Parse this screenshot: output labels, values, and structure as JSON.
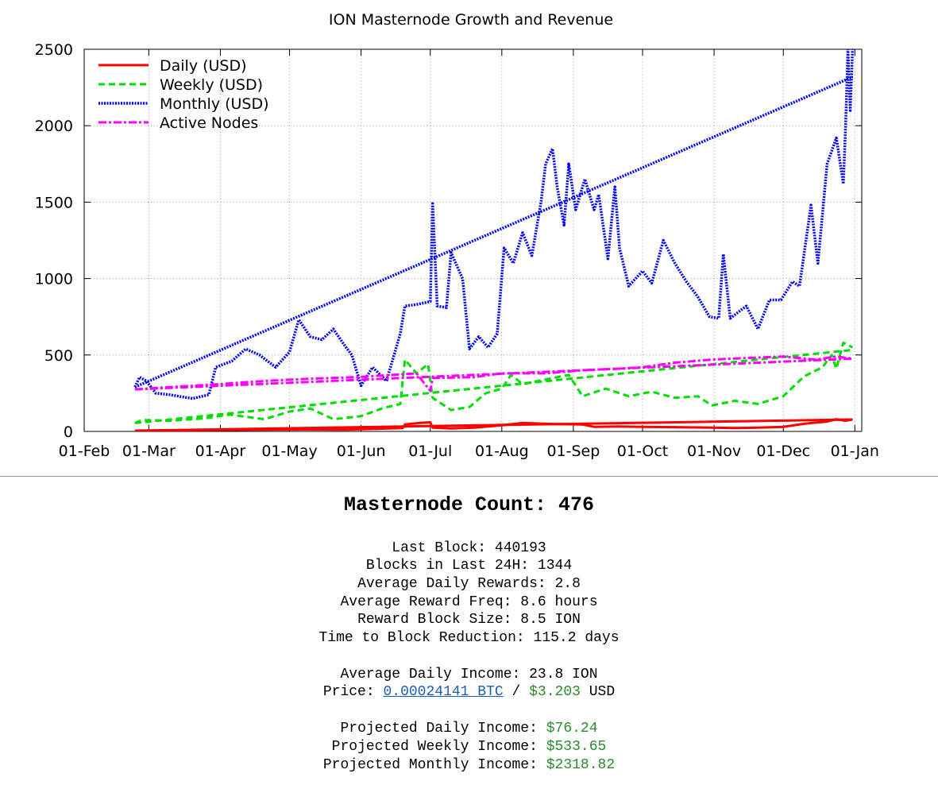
{
  "chart_data": {
    "type": "line",
    "title": "ION Masternode Growth and Revenue",
    "x_range": [
      "2018-02-01",
      "2019-01-04"
    ],
    "y_range": [
      0,
      2500
    ],
    "x_ticks": [
      {
        "date": "2018-02-01",
        "label": "01-Feb"
      },
      {
        "date": "2018-03-01",
        "label": "01-Mar"
      },
      {
        "date": "2018-04-01",
        "label": "01-Apr"
      },
      {
        "date": "2018-05-01",
        "label": "01-May"
      },
      {
        "date": "2018-06-01",
        "label": "01-Jun"
      },
      {
        "date": "2018-07-01",
        "label": "01-Jul"
      },
      {
        "date": "2018-08-01",
        "label": "01-Aug"
      },
      {
        "date": "2018-09-01",
        "label": "01-Sep"
      },
      {
        "date": "2018-10-01",
        "label": "01-Oct"
      },
      {
        "date": "2018-11-01",
        "label": "01-Nov"
      },
      {
        "date": "2018-12-01",
        "label": "01-Dec"
      },
      {
        "date": "2019-01-01",
        "label": "01-Jan"
      }
    ],
    "y_ticks": [
      0,
      500,
      1000,
      1500,
      2000,
      2500
    ],
    "grid": true,
    "legend_position": "top-left",
    "series": [
      {
        "name": "Daily (USD)",
        "color": "#ff0000",
        "style": "solid",
        "points": [
          [
            "2018-02-23",
            5
          ],
          [
            "2018-03-15",
            7
          ],
          [
            "2018-04-01",
            10
          ],
          [
            "2018-04-20",
            12
          ],
          [
            "2018-05-10",
            13
          ],
          [
            "2018-05-25",
            12
          ],
          [
            "2018-06-10",
            18
          ],
          [
            "2018-06-19",
            22
          ],
          [
            "2018-06-20",
            45
          ],
          [
            "2018-06-26",
            55
          ],
          [
            "2018-07-01",
            60
          ],
          [
            "2018-07-02",
            25
          ],
          [
            "2018-07-10",
            20
          ],
          [
            "2018-07-20",
            25
          ],
          [
            "2018-08-01",
            40
          ],
          [
            "2018-08-10",
            55
          ],
          [
            "2018-08-25",
            48
          ],
          [
            "2018-09-05",
            45
          ],
          [
            "2018-09-10",
            30
          ],
          [
            "2018-09-20",
            32
          ],
          [
            "2018-10-01",
            30
          ],
          [
            "2018-10-15",
            28
          ],
          [
            "2018-10-31",
            25
          ],
          [
            "2018-11-10",
            22
          ],
          [
            "2018-11-20",
            25
          ],
          [
            "2018-12-01",
            30
          ],
          [
            "2018-12-10",
            50
          ],
          [
            "2018-12-20",
            65
          ],
          [
            "2018-12-24",
            80
          ],
          [
            "2018-12-28",
            70
          ],
          [
            "2018-12-31",
            78
          ]
        ]
      },
      {
        "name": "Weekly (USD)",
        "color": "#00dd00",
        "style": "dashed",
        "points": [
          [
            "2018-02-23",
            55
          ],
          [
            "2018-02-26",
            75
          ],
          [
            "2018-03-10",
            70
          ],
          [
            "2018-03-25",
            85
          ],
          [
            "2018-04-05",
            110
          ],
          [
            "2018-04-20",
            80
          ],
          [
            "2018-05-01",
            130
          ],
          [
            "2018-05-10",
            150
          ],
          [
            "2018-05-20",
            80
          ],
          [
            "2018-06-01",
            100
          ],
          [
            "2018-06-10",
            150
          ],
          [
            "2018-06-18",
            180
          ],
          [
            "2018-06-20",
            470
          ],
          [
            "2018-06-25",
            380
          ],
          [
            "2018-06-30",
            440
          ],
          [
            "2018-07-02",
            220
          ],
          [
            "2018-07-10",
            140
          ],
          [
            "2018-07-18",
            160
          ],
          [
            "2018-07-25",
            250
          ],
          [
            "2018-08-01",
            280
          ],
          [
            "2018-08-05",
            370
          ],
          [
            "2018-08-10",
            310
          ],
          [
            "2018-08-20",
            340
          ],
          [
            "2018-08-30",
            370
          ],
          [
            "2018-09-05",
            230
          ],
          [
            "2018-09-15",
            280
          ],
          [
            "2018-09-25",
            230
          ],
          [
            "2018-10-05",
            260
          ],
          [
            "2018-10-15",
            220
          ],
          [
            "2018-10-25",
            230
          ],
          [
            "2018-10-31",
            170
          ],
          [
            "2018-11-10",
            200
          ],
          [
            "2018-11-20",
            180
          ],
          [
            "2018-12-01",
            230
          ],
          [
            "2018-12-10",
            360
          ],
          [
            "2018-12-18",
            420
          ],
          [
            "2018-12-22",
            500
          ],
          [
            "2018-12-24",
            410
          ],
          [
            "2018-12-27",
            580
          ],
          [
            "2018-12-31",
            550
          ]
        ]
      },
      {
        "name": "Monthly (USD)",
        "color": "#0000ff",
        "style": "dotted",
        "points": [
          [
            "2018-02-23",
            290
          ],
          [
            "2018-02-25",
            355
          ],
          [
            "2018-02-28",
            330
          ],
          [
            "2018-03-04",
            250
          ],
          [
            "2018-03-10",
            240
          ],
          [
            "2018-03-20",
            215
          ],
          [
            "2018-03-27",
            240
          ],
          [
            "2018-03-30",
            420
          ],
          [
            "2018-04-06",
            460
          ],
          [
            "2018-04-12",
            540
          ],
          [
            "2018-04-18",
            500
          ],
          [
            "2018-04-25",
            420
          ],
          [
            "2018-05-01",
            520
          ],
          [
            "2018-05-05",
            730
          ],
          [
            "2018-05-10",
            620
          ],
          [
            "2018-05-15",
            600
          ],
          [
            "2018-05-20",
            670
          ],
          [
            "2018-05-25",
            560
          ],
          [
            "2018-05-28",
            500
          ],
          [
            "2018-06-01",
            300
          ],
          [
            "2018-06-06",
            420
          ],
          [
            "2018-06-12",
            330
          ],
          [
            "2018-06-18",
            640
          ],
          [
            "2018-06-20",
            820
          ],
          [
            "2018-06-25",
            830
          ],
          [
            "2018-07-01",
            850
          ],
          [
            "2018-07-02",
            1490
          ],
          [
            "2018-07-04",
            820
          ],
          [
            "2018-07-08",
            810
          ],
          [
            "2018-07-10",
            1170
          ],
          [
            "2018-07-15",
            1000
          ],
          [
            "2018-07-18",
            540
          ],
          [
            "2018-07-22",
            620
          ],
          [
            "2018-07-26",
            550
          ],
          [
            "2018-07-30",
            640
          ],
          [
            "2018-08-02",
            1200
          ],
          [
            "2018-08-06",
            1100
          ],
          [
            "2018-08-10",
            1300
          ],
          [
            "2018-08-14",
            1150
          ],
          [
            "2018-08-18",
            1500
          ],
          [
            "2018-08-20",
            1750
          ],
          [
            "2018-08-23",
            1850
          ],
          [
            "2018-08-25",
            1600
          ],
          [
            "2018-08-28",
            1350
          ],
          [
            "2018-08-30",
            1750
          ],
          [
            "2018-09-02",
            1450
          ],
          [
            "2018-09-06",
            1650
          ],
          [
            "2018-09-10",
            1450
          ],
          [
            "2018-09-12",
            1550
          ],
          [
            "2018-09-16",
            1130
          ],
          [
            "2018-09-19",
            1600
          ],
          [
            "2018-09-21",
            1200
          ],
          [
            "2018-09-25",
            950
          ],
          [
            "2018-10-01",
            1050
          ],
          [
            "2018-10-05",
            970
          ],
          [
            "2018-10-10",
            1250
          ],
          [
            "2018-10-15",
            1100
          ],
          [
            "2018-10-20",
            980
          ],
          [
            "2018-10-25",
            880
          ],
          [
            "2018-10-30",
            750
          ],
          [
            "2018-11-03",
            740
          ],
          [
            "2018-11-05",
            1160
          ],
          [
            "2018-11-08",
            740
          ],
          [
            "2018-11-15",
            820
          ],
          [
            "2018-11-20",
            670
          ],
          [
            "2018-11-25",
            860
          ],
          [
            "2018-11-30",
            860
          ],
          [
            "2018-12-05",
            980
          ],
          [
            "2018-12-08",
            950
          ],
          [
            "2018-12-13",
            1480
          ],
          [
            "2018-12-16",
            1100
          ],
          [
            "2018-12-20",
            1750
          ],
          [
            "2018-12-24",
            1920
          ],
          [
            "2018-12-27",
            1620
          ],
          [
            "2018-12-28",
            2000
          ],
          [
            "2018-12-29",
            2500
          ],
          [
            "2018-12-30",
            2100
          ],
          [
            "2018-12-31",
            2500
          ]
        ]
      },
      {
        "name": "Active Nodes",
        "color": "#ff00ff",
        "style": "dashdot",
        "points": [
          [
            "2018-02-23",
            275
          ],
          [
            "2018-03-10",
            290
          ],
          [
            "2018-04-01",
            310
          ],
          [
            "2018-04-20",
            330
          ],
          [
            "2018-05-10",
            345
          ],
          [
            "2018-05-30",
            355
          ],
          [
            "2018-06-15",
            370
          ],
          [
            "2018-06-25",
            380
          ],
          [
            "2018-07-01",
            265
          ],
          [
            "2018-07-02",
            350
          ],
          [
            "2018-07-20",
            355
          ],
          [
            "2018-08-01",
            380
          ],
          [
            "2018-08-20",
            380
          ],
          [
            "2018-09-05",
            400
          ],
          [
            "2018-09-20",
            410
          ],
          [
            "2018-10-01",
            420
          ],
          [
            "2018-10-15",
            450
          ],
          [
            "2018-10-31",
            470
          ],
          [
            "2018-11-15",
            480
          ],
          [
            "2018-12-01",
            490
          ],
          [
            "2018-12-15",
            470
          ],
          [
            "2018-12-24",
            490
          ],
          [
            "2018-12-31",
            476
          ]
        ]
      }
    ],
    "trendlines": [
      {
        "series": "Daily (USD)",
        "from": [
          "2018-02-23",
          5
        ],
        "to": [
          "2018-12-31",
          78
        ]
      },
      {
        "series": "Weekly (USD)",
        "from": [
          "2018-02-23",
          55
        ],
        "to": [
          "2018-12-31",
          533
        ]
      },
      {
        "series": "Monthly (USD)",
        "from": [
          "2018-02-23",
          290
        ],
        "to": [
          "2018-12-31",
          2319
        ]
      },
      {
        "series": "Active Nodes",
        "from": [
          "2018-02-23",
          275
        ],
        "to": [
          "2018-12-31",
          476
        ]
      }
    ]
  },
  "summary": {
    "title": "Masternode Count: 476",
    "last_block": "Last Block: 440193",
    "blocks_24h": "Blocks in Last 24H: 1344",
    "avg_daily_rewards": "Average Daily Rewards: 2.8",
    "avg_reward_freq": "Average Reward Freq: 8.6 hours",
    "reward_block_size": "Reward Block Size: 8.5 ION",
    "time_to_reduction": "Time to Block Reduction: 115.2 days",
    "avg_daily_income": "Average Daily Income: 23.8 ION",
    "price_label": "Price: ",
    "price_btc": "0.00024141 BTC",
    "price_sep": " / ",
    "price_usd": "$3.203",
    "price_usd_unit": " USD",
    "proj_daily_label": "Projected Daily Income: ",
    "proj_daily_value": "$76.24",
    "proj_weekly_label": "Projected Weekly Income: ",
    "proj_weekly_value": "$533.65",
    "proj_monthly_label": "Projected Monthly Income: ",
    "proj_monthly_value": "$2318.82"
  }
}
